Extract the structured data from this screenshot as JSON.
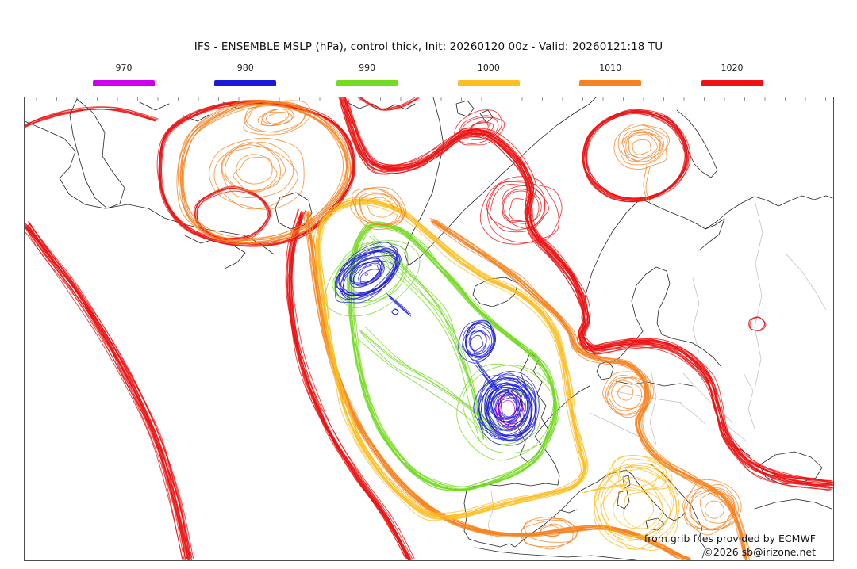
{
  "header": {
    "title": "IFS - ENSEMBLE MSLP (hPa), control thick, Init: 20260120 00z - Valid: 20260121:18 TU"
  },
  "legend": {
    "items": [
      {
        "label": "970",
        "color": "#cc00ee"
      },
      {
        "label": "980",
        "color": "#1a1ad8"
      },
      {
        "label": "990",
        "color": "#74db20"
      },
      {
        "label": "1000",
        "color": "#fcbe23"
      },
      {
        "label": "1010",
        "color": "#f8821e"
      },
      {
        "label": "1020",
        "color": "#ee1212"
      }
    ]
  },
  "map": {
    "attribution_line1": "from grib files provided by ECMWF",
    "attribution_line2": "©2026 sb@irizone.net",
    "coastline_color": "#1a1a1a",
    "country_border_color": "#bdbdbd",
    "frame_color": "#4d4d4d"
  }
}
